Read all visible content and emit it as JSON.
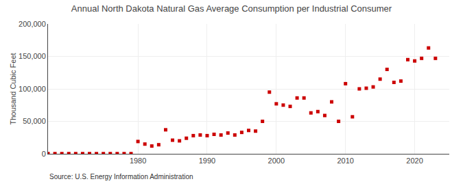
{
  "chart_data": {
    "type": "scatter",
    "title": "Annual North Dakota Natural Gas Average Consumption per Industrial Consumer",
    "ylabel": "Thousand Cubic Feet",
    "annotations": [
      "Source: U.S. Energy Information Administration"
    ],
    "x": [
      1967,
      1968,
      1969,
      1970,
      1971,
      1972,
      1973,
      1974,
      1975,
      1976,
      1977,
      1978,
      1979,
      1980,
      1981,
      1982,
      1983,
      1984,
      1985,
      1986,
      1987,
      1988,
      1989,
      1990,
      1991,
      1992,
      1993,
      1994,
      1995,
      1996,
      1997,
      1998,
      1999,
      2000,
      2001,
      2002,
      2003,
      2004,
      2005,
      2006,
      2007,
      2008,
      2009,
      2010,
      2011,
      2012,
      2013,
      2014,
      2015,
      2016,
      2017,
      2018,
      2019,
      2020,
      2021,
      2022,
      2023
    ],
    "values": [
      300,
      300,
      300,
      300,
      300,
      300,
      300,
      300,
      300,
      300,
      300,
      300,
      300,
      19000,
      15000,
      12000,
      14000,
      37000,
      21000,
      20000,
      24000,
      28000,
      29000,
      28000,
      30000,
      29000,
      32000,
      29000,
      33000,
      36000,
      35000,
      50000,
      95000,
      77000,
      75000,
      73000,
      86000,
      86000,
      63000,
      65000,
      59000,
      80000,
      50000,
      108000,
      57000,
      100000,
      101000,
      103000,
      115000,
      130000,
      110000,
      112000,
      145000,
      143000,
      147000,
      163000,
      147000
    ],
    "color": "#cc0000",
    "marker": "square",
    "xlim": [
      1967,
      2025
    ],
    "xticks": [
      1980,
      1990,
      2000,
      2010,
      2020
    ],
    "ylim": [
      0,
      200000
    ],
    "yticks": [
      0,
      {
        "value": 50000,
        "label": "50,000"
      },
      {
        "value": 100000,
        "label": "100,000"
      },
      {
        "value": 150000,
        "label": "150,000"
      },
      {
        "value": 200000,
        "label": "200,000"
      }
    ],
    "grid": true
  }
}
